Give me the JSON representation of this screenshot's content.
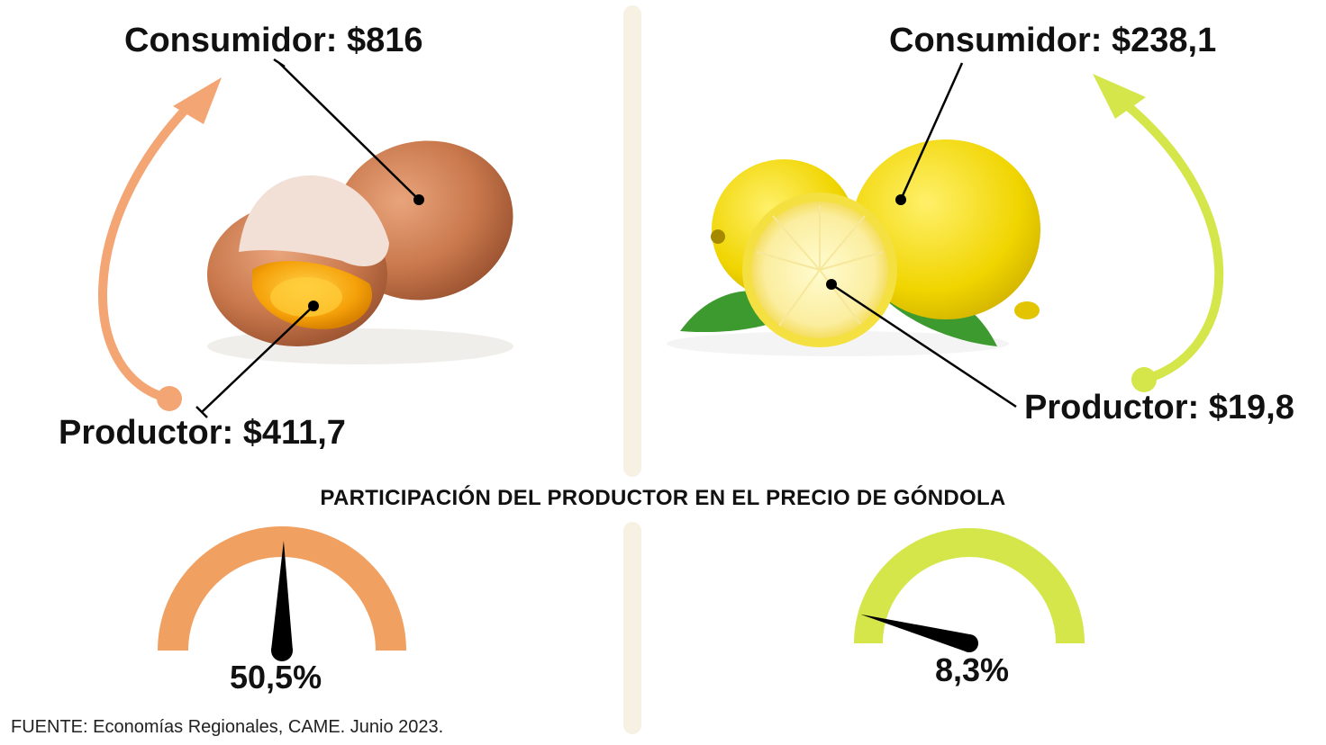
{
  "products": [
    {
      "name": "egg",
      "consumer_label": "Consumidor: $816",
      "producer_label": "Productor: $411,7",
      "consumer_price": 816,
      "producer_price": 411.7,
      "producer_share_text": "50,5%",
      "producer_share": 50.5,
      "accent_color": "#f0a060"
    },
    {
      "name": "lemon",
      "consumer_label": "Consumidor: $238,1",
      "producer_label": "Productor: $19,8",
      "consumer_price": 238.1,
      "producer_price": 19.8,
      "producer_share_text": "8,3%",
      "producer_share": 8.3,
      "accent_color": "#d4e64a"
    }
  ],
  "section_title": "PARTICIPACIÓN DEL PRODUCTOR EN EL PRECIO DE GÓNDOLA",
  "source": "FUENTE: Economías Regionales, CAME. Junio 2023.",
  "divider_color": "#f6f1e3"
}
